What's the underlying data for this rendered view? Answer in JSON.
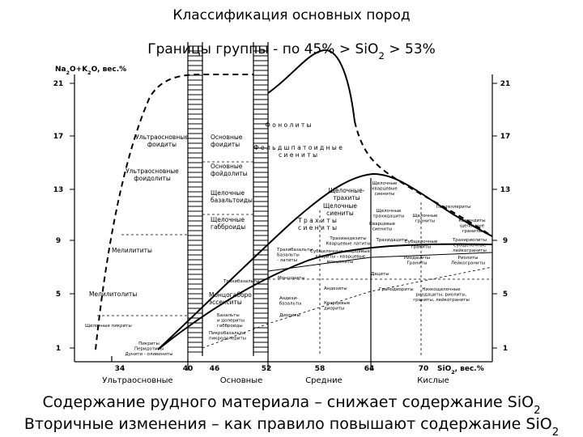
{
  "header": {
    "title": "Классификация основных пород",
    "subtitle": [
      "Границы группы - по 45% > SiO",
      "2",
      " > 53%"
    ]
  },
  "diagram": {
    "y_axis_label": [
      "Na",
      "2",
      "O+K",
      "2",
      "O, вес.%"
    ],
    "y_ticks": [
      21,
      17,
      13,
      9,
      5,
      1
    ],
    "x_ticks": [
      34,
      40,
      46,
      52,
      58,
      64,
      70
    ],
    "x_axis_label": [
      "SiO",
      "2",
      ", вес.%"
    ],
    "groups": [
      "Ультраосновные",
      "Основные",
      "Средние",
      "Кислые"
    ],
    "labels": [
      [
        "Ультраосновные",
        "фоидиты"
      ],
      [
        "Ультраосновные",
        "фоидолиты"
      ],
      [
        "Основные",
        "фоидиты"
      ],
      [
        "Основные",
        "фойдолиты"
      ],
      [
        "Щелочные",
        "базальтоиды"
      ],
      [
        "Щелочные",
        "габброиды"
      ],
      [
        "Мелилититы"
      ],
      [
        "Мелилитолиты"
      ],
      [
        "Щелочные пикриты"
      ],
      [
        "Ф о н о л и т ы"
      ],
      [
        "Ф е л ь д ш п а т о и д н ы е",
        "с и е н и т ы"
      ],
      [
        "Щелочные-",
        "трахиты"
      ],
      [
        "Щелочные",
        "сиениты"
      ],
      [
        "Т р а х и т ы",
        "с и е н и т ы"
      ],
      [
        "Трахибазальты"
      ],
      [
        "Монцогаббро",
        "эссекситы"
      ],
      [
        "Базальты",
        "и долериты",
        "габброиды"
      ],
      [
        "Пикробазальты",
        "пикродолериты"
      ],
      [
        "Пикриты",
        "Перидотиты",
        "Дунити - оливиниты"
      ],
      [
        "Андезиты"
      ],
      [
        "Кварцевые",
        "диориты"
      ],
      [
        "Андези-",
        "базальты"
      ],
      [
        "Диориты"
      ],
      [
        "Гранодиориты"
      ],
      [
        "Низкощелочные",
        "риодациты, риолиты,",
        "граниты, лейкограниты"
      ],
      [
        "Дациты"
      ],
      [
        "Трахиандезиты",
        "Кварцевые латиты"
      ],
      [
        "Трахибазальты",
        "Базальты",
        "- латиты"
      ],
      [
        "Субщелочные кварцевые",
        "диориты - кварцевые",
        "монцониты"
      ],
      [
        "Трахидациты"
      ],
      [
        "Субщелочные",
        "граниты"
      ],
      [
        "Трахириолиты",
        "Субщелочные",
        "лейкограниты"
      ],
      [
        "Риодациты",
        "Граниты"
      ],
      [
        "Риолиты",
        "Лейкограниты"
      ],
      [
        "Пантеллериты"
      ],
      [
        "Комендиты",
        "щелочные",
        "граниты"
      ],
      [
        "Щелочные",
        "кварцевые",
        "сиениты"
      ],
      [
        "Щелочные",
        "трахидациты"
      ],
      [
        "Кварцевые",
        "сиениты"
      ],
      [
        "Щелочные",
        "граниты"
      ],
      [
        "Монцониты"
      ]
    ]
  },
  "footer": {
    "line1": [
      "Содержание рудного материала – снижает содержание SiO",
      "2"
    ],
    "line2": [
      "Вторичные изменения – как правило повышают содержание SiO",
      "2"
    ]
  }
}
